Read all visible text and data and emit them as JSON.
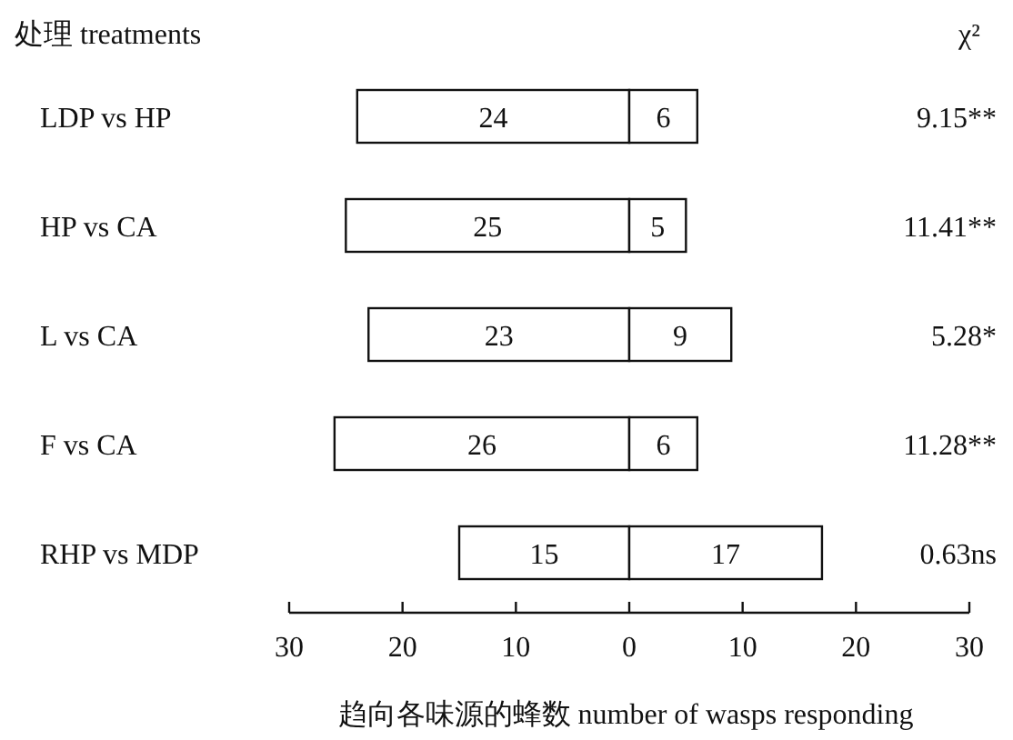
{
  "chart_data": {
    "type": "bar",
    "orientation": "horizontal",
    "data_labels": true,
    "ylabel": "处理 treatments",
    "y2label": "χ²",
    "xlabel": "趋向各味源的蜂数 number of wasps responding",
    "categories": [
      "LDP vs HP",
      "HP vs CA",
      "L vs CA",
      "F vs CA",
      "RHP vs MDP"
    ],
    "series": [
      {
        "color": "#ffffff",
        "values": [
          24,
          25,
          23,
          26,
          15
        ],
        "base": [
          -24,
          -25,
          -23,
          -26,
          -15
        ]
      },
      {
        "color": "#ffffff",
        "values": [
          6,
          5,
          9,
          6,
          17
        ]
      }
    ],
    "xlim": [
      -30,
      30
    ],
    "xticks": [
      {
        "value": -30,
        "label": "30"
      },
      {
        "value": -20,
        "label": "20"
      },
      {
        "value": -10,
        "label": "10"
      },
      0,
      10,
      20,
      30
    ],
    "annotations": [
      "9.15**",
      "11.41**",
      "5.28*",
      "11.28**",
      "0.63ns"
    ]
  }
}
